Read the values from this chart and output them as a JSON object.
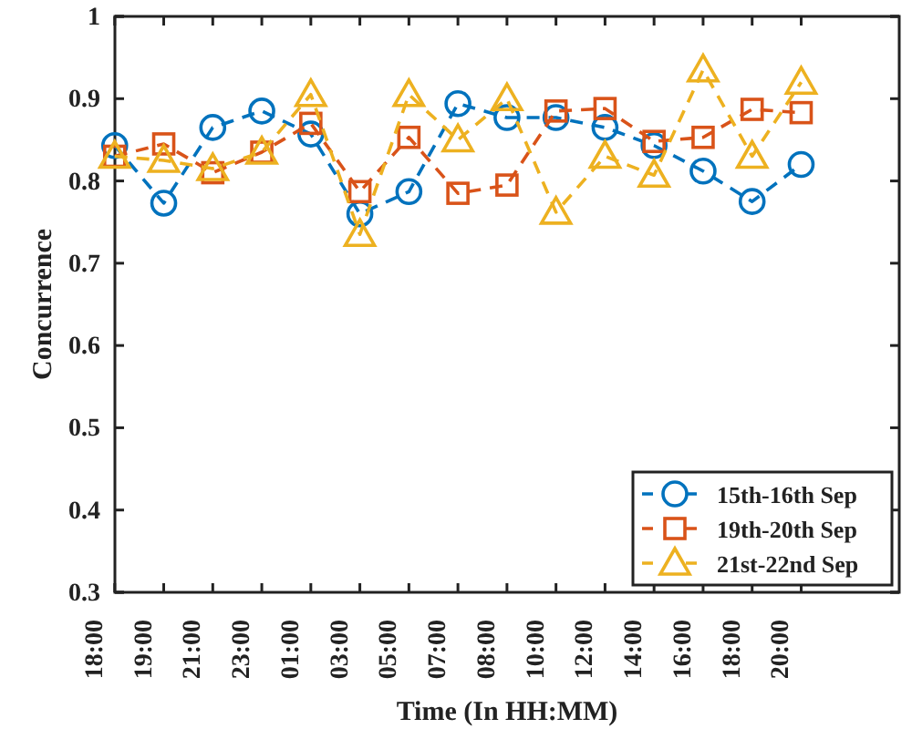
{
  "chart_data": {
    "type": "line",
    "xlabel": "Time (In HH:MM)",
    "ylabel": "Concurrence",
    "categories": [
      "18:00",
      "19:00",
      "21:00",
      "23:00",
      "01:00",
      "03:00",
      "05:00",
      "07:00",
      "08:00",
      "10:00",
      "12:00",
      "14:00",
      "16:00",
      "18:00",
      "20:00"
    ],
    "ylim": [
      0.3,
      1
    ],
    "yticks": [
      {
        "value": 0.3,
        "label": "0.3"
      },
      {
        "value": 0.4,
        "label": "0.4"
      },
      {
        "value": 0.5,
        "label": "0.5"
      },
      {
        "value": 0.6,
        "label": "0.6"
      },
      {
        "value": 0.7,
        "label": "0.7"
      },
      {
        "value": 0.8,
        "label": "0.8"
      },
      {
        "value": 0.9,
        "label": "0.9"
      },
      {
        "value": 1,
        "label": "1"
      }
    ],
    "grid": false,
    "legend": "bottom right",
    "line_style": "dashed",
    "series": [
      {
        "name": "15th-16th Sep",
        "color": "#0072bd",
        "marker": "circle",
        "values": [
          0.843,
          0.773,
          0.865,
          0.885,
          0.857,
          0.76,
          0.787,
          0.894,
          0.877,
          0.877,
          0.865,
          0.843,
          0.812,
          0.775,
          0.82
        ]
      },
      {
        "name": "19th-20th Sep",
        "color": "#d95319",
        "marker": "square",
        "values": [
          0.83,
          0.845,
          0.81,
          0.835,
          0.87,
          0.787,
          0.853,
          0.785,
          0.795,
          0.885,
          0.888,
          0.848,
          0.853,
          0.887,
          0.883
        ]
      },
      {
        "name": "21st-22nd Sep",
        "color": "#edb120",
        "marker": "triangle",
        "values": [
          0.83,
          0.825,
          0.815,
          0.835,
          0.905,
          0.735,
          0.905,
          0.85,
          0.9,
          0.762,
          0.83,
          0.807,
          0.935,
          0.83,
          0.92
        ]
      }
    ]
  }
}
